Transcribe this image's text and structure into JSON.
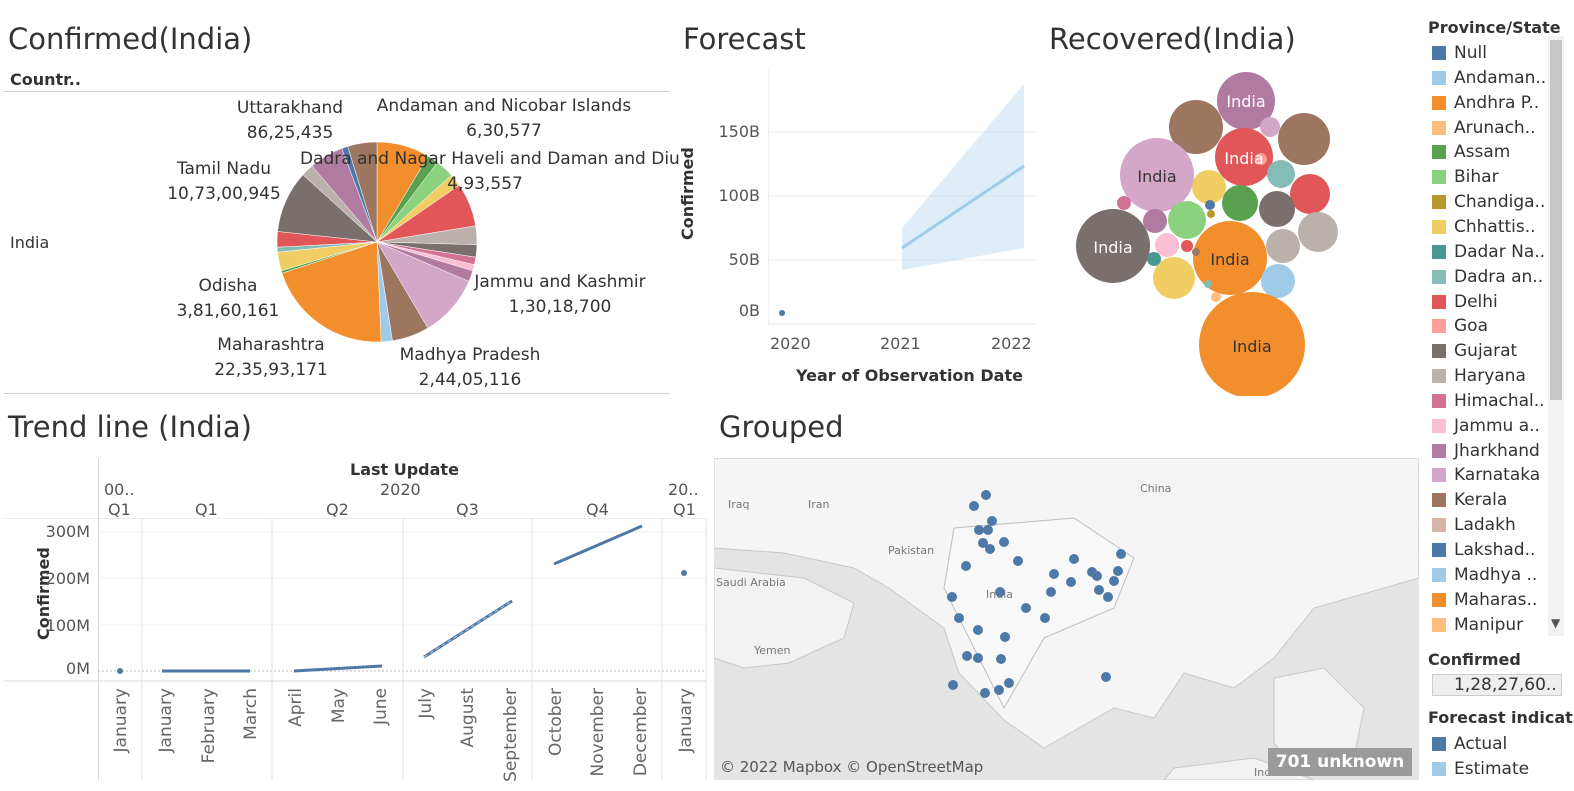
{
  "confirmed_panel": {
    "title": "Confirmed(India)",
    "column_header": "Countr..",
    "row_label": "India",
    "labels": [
      {
        "name": "Uttarakhand",
        "value": "86,25,435"
      },
      {
        "name": "Andaman and Nicobar Islands",
        "value": "6,30,577"
      },
      {
        "name": "Tamil Nadu",
        "value": "10,73,00,945"
      },
      {
        "name": "Dadra and Nagar Haveli and Daman and Diu",
        "value": "4,93,557"
      },
      {
        "name": "Jammu and Kashmir",
        "value": "1,30,18,700"
      },
      {
        "name": "Odisha",
        "value": "3,81,60,161"
      },
      {
        "name": "Maharashtra",
        "value": "22,35,93,171"
      },
      {
        "name": "Madhya Pradesh",
        "value": "2,44,05,116"
      }
    ]
  },
  "forecast_panel": {
    "title": "Forecast",
    "ylabel": "Confirmed",
    "xlabel": "Year of Observation Date",
    "yticks": [
      "150B",
      "100B",
      "50B",
      "0B"
    ],
    "xticks": [
      "2020",
      "2021",
      "2022"
    ]
  },
  "recovered_panel": {
    "title": "Recovered(India)",
    "bubble_label": "India"
  },
  "trend_panel": {
    "title": "Trend line (India)",
    "header": "Last Update",
    "year_2020": "2020",
    "col_left_top": "00..",
    "col_left_q": "Q1",
    "quarters": [
      "Q1",
      "Q2",
      "Q3",
      "Q4"
    ],
    "col_right_top": "20..",
    "col_right_q": "Q1",
    "ylabel": "Confirmed",
    "yticks": [
      "300M",
      "200M",
      "100M",
      "0M"
    ],
    "months": [
      "January",
      "January",
      "February",
      "March",
      "April",
      "May",
      "June",
      "July",
      "August",
      "September",
      "October",
      "November",
      "December",
      "January"
    ]
  },
  "map_panel": {
    "title": "Grouped",
    "attribution": "© 2022 Mapbox © OpenStreetMap",
    "unknown_badge": "701 unknown",
    "place_labels": [
      "Iraq",
      "Iran",
      "China",
      "Pakistan",
      "Saudi Arabia",
      "India",
      "Yemen",
      "Indonesia"
    ]
  },
  "legend": {
    "title": "Province/State",
    "items": [
      {
        "label": "Null",
        "color": "#4e79a7"
      },
      {
        "label": "Andaman..",
        "color": "#a0cbe8"
      },
      {
        "label": "Andhra P..",
        "color": "#f28e2b"
      },
      {
        "label": "Arunach..",
        "color": "#ffbe7d"
      },
      {
        "label": "Assam",
        "color": "#59a14f"
      },
      {
        "label": "Bihar",
        "color": "#8cd17d"
      },
      {
        "label": "Chandiga..",
        "color": "#b6992d"
      },
      {
        "label": "Chhattis..",
        "color": "#f1ce63"
      },
      {
        "label": "Dadar Na..",
        "color": "#499894"
      },
      {
        "label": "Dadra an..",
        "color": "#86bcb6"
      },
      {
        "label": "Delhi",
        "color": "#e15759"
      },
      {
        "label": "Goa",
        "color": "#ff9d9a"
      },
      {
        "label": "Gujarat",
        "color": "#79706e"
      },
      {
        "label": "Haryana",
        "color": "#bab0ac"
      },
      {
        "label": "Himachal..",
        "color": "#d37295"
      },
      {
        "label": "Jammu a..",
        "color": "#fabfd2"
      },
      {
        "label": "Jharkhand",
        "color": "#b07aa1"
      },
      {
        "label": "Karnataka",
        "color": "#d4a6c8"
      },
      {
        "label": "Kerala",
        "color": "#9d7660"
      },
      {
        "label": "Ladakh",
        "color": "#d7b5a6"
      },
      {
        "label": "Lakshad..",
        "color": "#4e79a7"
      },
      {
        "label": "Madhya ..",
        "color": "#a0cbe8"
      },
      {
        "label": "Maharas..",
        "color": "#f28e2b"
      },
      {
        "label": "Manipur",
        "color": "#ffbe7d"
      }
    ],
    "size_title": "Confirmed",
    "size_value": "1,28,27,60..",
    "forecast_title": "Forecast indicat",
    "forecast_items": [
      {
        "label": "Actual",
        "color": "#4e79a7"
      },
      {
        "label": "Estimate",
        "color": "#a0cbe8"
      }
    ]
  }
}
